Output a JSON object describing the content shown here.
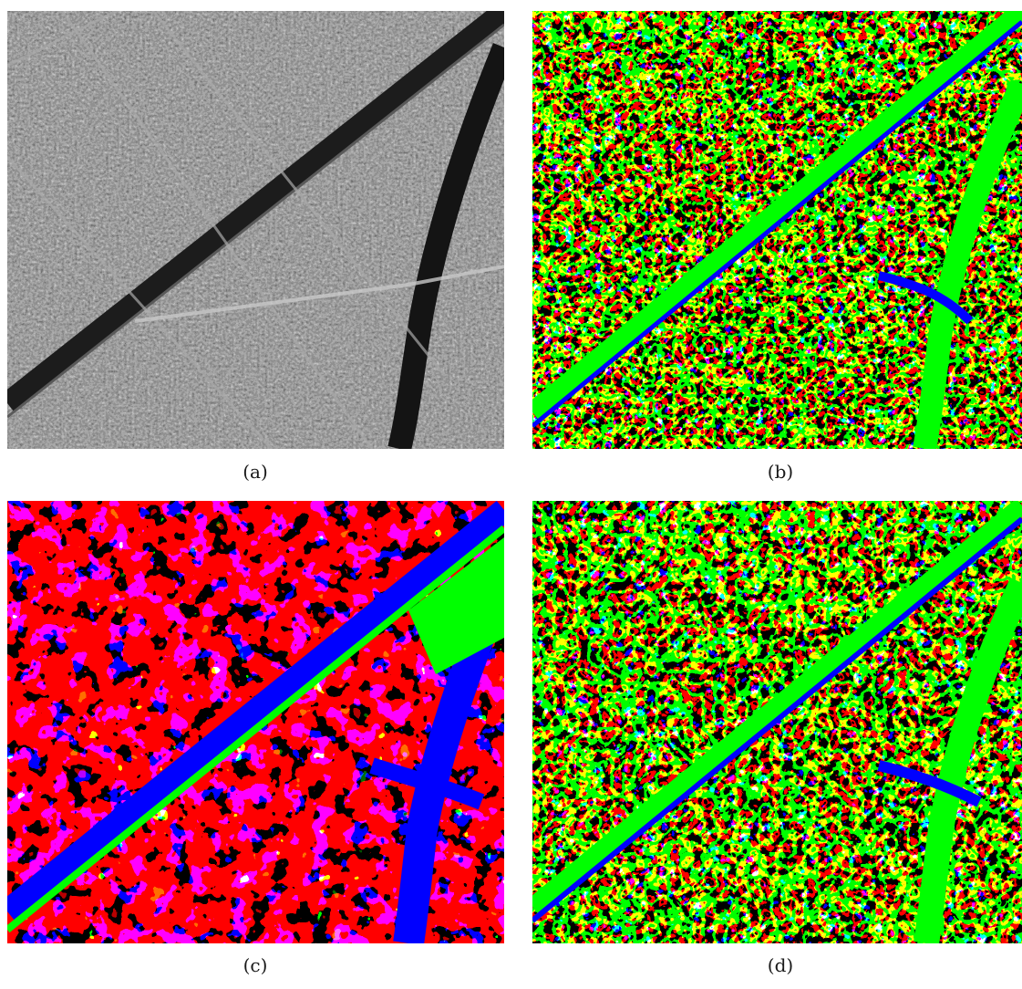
{
  "figure": {
    "panels": [
      {
        "id": "a",
        "caption": "(a)",
        "kind": "aerial-grayscale"
      },
      {
        "id": "b",
        "caption": "(b)",
        "kind": "classification-map"
      },
      {
        "id": "c",
        "caption": "(c)",
        "kind": "classification-map"
      },
      {
        "id": "d",
        "caption": "(d)",
        "kind": "classification-map"
      }
    ],
    "class_colors": [
      "#00ff00",
      "#ff0000",
      "#0000ff",
      "#7a2a00"
    ]
  }
}
